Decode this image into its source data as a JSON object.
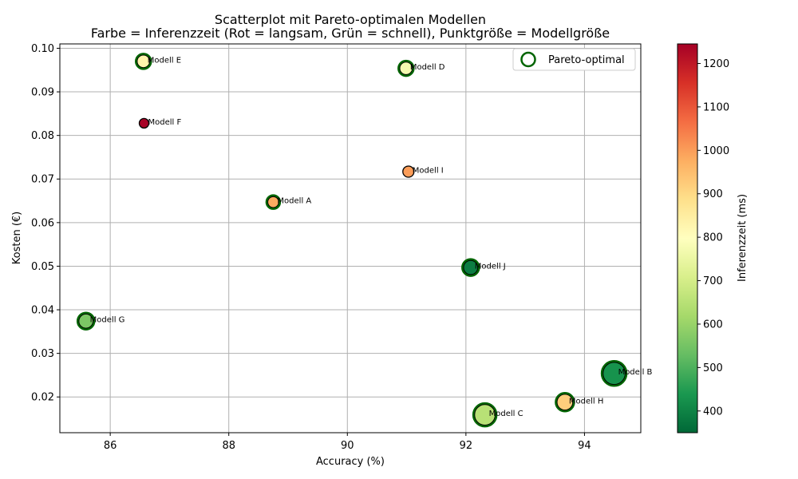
{
  "chart_data": {
    "type": "scatter",
    "title_line1": "Scatterplot mit Pareto-optimalen Modellen",
    "title_line2": "Farbe = Inferenzzeit (Rot = langsam, Grün = schnell), Punktgröße = Modellgröße",
    "xlabel": "Accuracy (%)",
    "ylabel": "Kosten (€)",
    "xlim": [
      85.15,
      94.95
    ],
    "ylim": [
      0.0118,
      0.101
    ],
    "xticks": [
      86,
      88,
      90,
      92,
      94
    ],
    "yticks": [
      0.02,
      0.03,
      0.04,
      0.05,
      0.06,
      0.07,
      0.08,
      0.09,
      0.1
    ],
    "ytick_labels": [
      "0.02",
      "0.03",
      "0.04",
      "0.05",
      "0.06",
      "0.07",
      "0.08",
      "0.09",
      "0.10"
    ],
    "grid": true,
    "legend": {
      "label": "Pareto-optimal",
      "placement": "top-right"
    },
    "colorbar": {
      "label": "Inferenzzeit (ms)",
      "min": 350,
      "max": 1245,
      "ticks": [
        400,
        500,
        600,
        700,
        800,
        900,
        1000,
        1100,
        1200
      ],
      "colormap": "RdYlGn_r"
    },
    "points": [
      {
        "name": "Modell A",
        "accuracy": 88.75,
        "cost": 0.0647,
        "inference_ms": 980,
        "size": 7,
        "pareto": true
      },
      {
        "name": "Modell B",
        "accuracy": 94.5,
        "cost": 0.0254,
        "inference_ms": 430,
        "size": 14,
        "pareto": true
      },
      {
        "name": "Modell C",
        "accuracy": 92.32,
        "cost": 0.0159,
        "inference_ms": 650,
        "size": 13,
        "pareto": true
      },
      {
        "name": "Modell D",
        "accuracy": 90.99,
        "cost": 0.0954,
        "inference_ms": 770,
        "size": 8,
        "pareto": true
      },
      {
        "name": "Modell E",
        "accuracy": 86.56,
        "cost": 0.097,
        "inference_ms": 830,
        "size": 8,
        "pareto": true
      },
      {
        "name": "Modell F",
        "accuracy": 86.57,
        "cost": 0.0828,
        "inference_ms": 1240,
        "size": 6,
        "pareto": false
      },
      {
        "name": "Modell G",
        "accuracy": 85.59,
        "cost": 0.0374,
        "inference_ms": 560,
        "size": 9,
        "pareto": true
      },
      {
        "name": "Modell H",
        "accuracy": 93.67,
        "cost": 0.0188,
        "inference_ms": 920,
        "size": 10,
        "pareto": true
      },
      {
        "name": "Modell I",
        "accuracy": 91.03,
        "cost": 0.0717,
        "inference_ms": 1000,
        "size": 7,
        "pareto": false
      },
      {
        "name": "Modell J",
        "accuracy": 92.08,
        "cost": 0.0497,
        "inference_ms": 390,
        "size": 9,
        "pareto": true
      }
    ]
  }
}
